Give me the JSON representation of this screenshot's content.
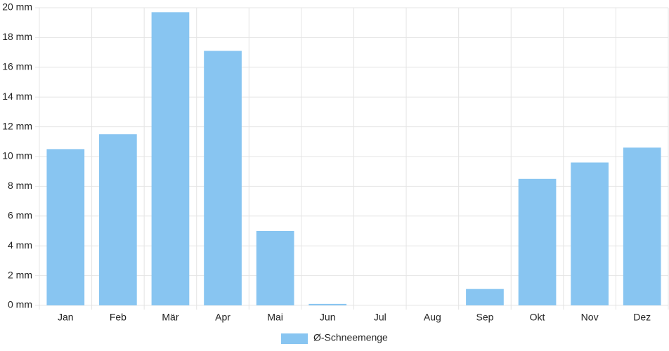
{
  "chart_data": {
    "type": "bar",
    "categories": [
      "Jan",
      "Feb",
      "Mär",
      "Apr",
      "Mai",
      "Jun",
      "Jul",
      "Aug",
      "Sep",
      "Okt",
      "Nov",
      "Dez"
    ],
    "series": [
      {
        "name": "Ø-Schneemenge",
        "color": "#88c5f1",
        "values": [
          10.5,
          11.5,
          19.7,
          17.1,
          5.0,
          0.1,
          0,
          0,
          1.1,
          8.5,
          9.6,
          10.6
        ]
      }
    ],
    "ylim": [
      0,
      20
    ],
    "yticks": [
      {
        "value": 0,
        "label": "0 mm"
      },
      {
        "value": 2,
        "label": "2 mm"
      },
      {
        "value": 4,
        "label": "4 mm"
      },
      {
        "value": 6,
        "label": "6 mm"
      },
      {
        "value": 8,
        "label": "8 mm"
      },
      {
        "value": 10,
        "label": "10 mm"
      },
      {
        "value": 12,
        "label": "12 mm"
      },
      {
        "value": 14,
        "label": "14 mm"
      },
      {
        "value": 16,
        "label": "16 mm"
      },
      {
        "value": 18,
        "label": "18 mm"
      },
      {
        "value": 20,
        "label": "20 mm"
      }
    ],
    "grid": true,
    "legend": "bottom"
  }
}
